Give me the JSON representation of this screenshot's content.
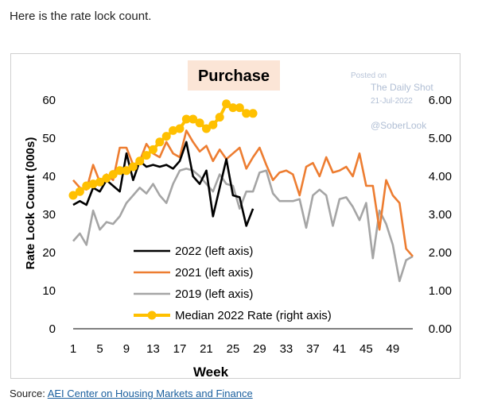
{
  "intro_text": "Here is the rate lock count.",
  "source": {
    "label": "Source:",
    "link_text": "AEI Center on Housing Markets and Finance"
  },
  "watermark": {
    "posted_on": "Posted on",
    "publisher": "The Daily Shot",
    "date": "21-Jul-2022",
    "handle": "@SoberLook"
  },
  "chart_data": {
    "type": "line",
    "title": "Purchase",
    "xlabel": "Week",
    "ylabel": "Rate Lock Count (000s)",
    "y2label": "",
    "xlim": [
      1,
      52
    ],
    "ylim": [
      0,
      60
    ],
    "y2lim": [
      0,
      6
    ],
    "x_ticks": [
      "1",
      "5",
      "9",
      "13",
      "17",
      "21",
      "25",
      "29",
      "33",
      "37",
      "41",
      "45",
      "49"
    ],
    "y_ticks": [
      "0",
      "10",
      "20",
      "30",
      "40",
      "50",
      "60"
    ],
    "y2_ticks": [
      "0.00",
      "1.00",
      "2.00",
      "3.00",
      "4.00",
      "5.00",
      "6.00"
    ],
    "legend_position": "lower-middle",
    "title_background": "#fbe5d6",
    "series": [
      {
        "name": "2022 (left axis)",
        "axis": "left",
        "color": "#000000",
        "x": [
          1,
          2,
          3,
          4,
          5,
          6,
          7,
          8,
          9,
          10,
          11,
          12,
          13,
          14,
          15,
          16,
          17,
          18,
          19,
          20,
          21,
          22,
          23,
          24,
          25,
          26,
          27,
          28
        ],
        "values": [
          32.5,
          33.5,
          32.5,
          37,
          36,
          39,
          37.5,
          36,
          46,
          39,
          44,
          42.5,
          43,
          42.5,
          43,
          42,
          44,
          49,
          40,
          38,
          41.5,
          29.5,
          37,
          44.5,
          35,
          34.5,
          27,
          31.5
        ]
      },
      {
        "name": "2021 (left axis)",
        "axis": "left",
        "color": "#ed7d31",
        "x": [
          1,
          2,
          3,
          4,
          5,
          6,
          7,
          8,
          9,
          10,
          11,
          12,
          13,
          14,
          15,
          16,
          17,
          18,
          19,
          20,
          21,
          22,
          23,
          24,
          25,
          26,
          27,
          28,
          29,
          30,
          31,
          32,
          33,
          34,
          35,
          36,
          37,
          38,
          39,
          40,
          41,
          42,
          43,
          44,
          45,
          46,
          47,
          48,
          49,
          50,
          51,
          52
        ],
        "values": [
          39,
          37,
          36.5,
          43,
          38.5,
          40.5,
          39,
          47.5,
          47.5,
          43,
          44,
          48.5,
          46,
          45,
          49,
          46,
          45,
          52,
          49,
          46.5,
          48,
          44,
          47,
          44.5,
          46,
          47.5,
          42,
          45,
          47.5,
          43,
          39,
          41,
          41.5,
          40.5,
          35,
          42.5,
          43.5,
          40,
          45,
          41,
          41.5,
          42.5,
          40,
          46,
          37.5,
          37.5,
          26,
          39,
          35,
          33,
          21,
          19
        ]
      },
      {
        "name": "2019 (left axis)",
        "axis": "left",
        "color": "#a5a5a5",
        "x": [
          1,
          2,
          3,
          4,
          5,
          6,
          7,
          8,
          9,
          10,
          11,
          12,
          13,
          14,
          15,
          16,
          17,
          18,
          19,
          20,
          21,
          22,
          23,
          24,
          25,
          26,
          27,
          28,
          29,
          30,
          31,
          32,
          33,
          34,
          35,
          36,
          37,
          38,
          39,
          40,
          41,
          42,
          43,
          44,
          45,
          46,
          47,
          48,
          49,
          50,
          51,
          52
        ],
        "values": [
          23,
          25,
          22,
          31,
          26,
          28,
          27.5,
          29.5,
          33,
          35,
          37,
          35.5,
          38,
          35,
          33,
          38,
          41.5,
          42,
          41.5,
          40,
          38,
          36,
          40.5,
          38,
          37.5,
          31.5,
          36,
          36,
          41,
          41.5,
          35.5,
          33.5,
          33.5,
          33.5,
          34,
          26.5,
          35,
          36.5,
          35,
          27,
          34,
          34.5,
          32,
          28.5,
          33,
          18.5,
          31,
          27.5,
          22,
          12.5,
          18,
          19
        ]
      },
      {
        "name": "Median 2022 Rate (right axis)",
        "axis": "right",
        "color": "#ffc000",
        "x": [
          1,
          2,
          3,
          4,
          5,
          6,
          7,
          8,
          9,
          10,
          11,
          12,
          13,
          14,
          15,
          16,
          17,
          18,
          19,
          20,
          21,
          22,
          23,
          24,
          25,
          26,
          27,
          28
        ],
        "values": [
          3.5,
          3.6,
          3.75,
          3.8,
          3.85,
          3.95,
          4.05,
          4.15,
          4.15,
          4.25,
          4.4,
          4.55,
          4.7,
          4.9,
          5.05,
          5.2,
          5.25,
          5.5,
          5.5,
          5.4,
          5.25,
          5.35,
          5.55,
          5.9,
          5.8,
          5.8,
          5.65,
          5.65
        ]
      }
    ]
  }
}
